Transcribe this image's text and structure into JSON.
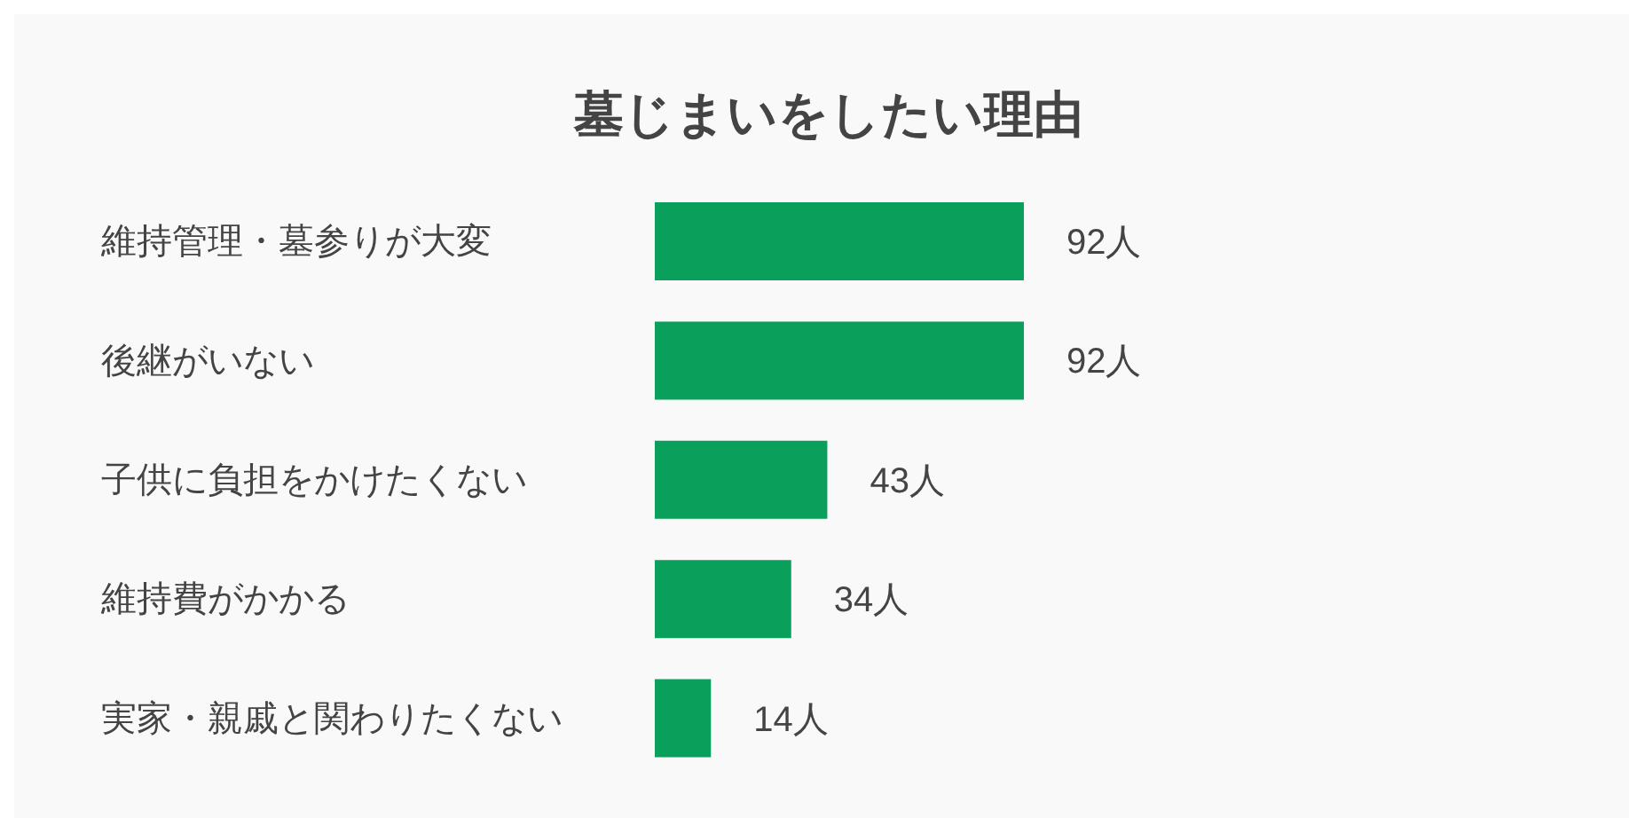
{
  "chart_data": {
    "type": "bar",
    "orientation": "horizontal",
    "title": "墓じまいをしたい理由",
    "categories": [
      "維持管理・墓参りが大変",
      "後継がいない",
      "子供に負担をかけたくない",
      "維持費がかかる",
      "実家・親戚と関わりたくない"
    ],
    "values": [
      92,
      92,
      43,
      34,
      14
    ],
    "value_labels": [
      "92人",
      "92人",
      "43人",
      "34人",
      "14人"
    ],
    "color": "#0a9f5a",
    "grid": false,
    "legend": false,
    "tick_labels": "y"
  }
}
